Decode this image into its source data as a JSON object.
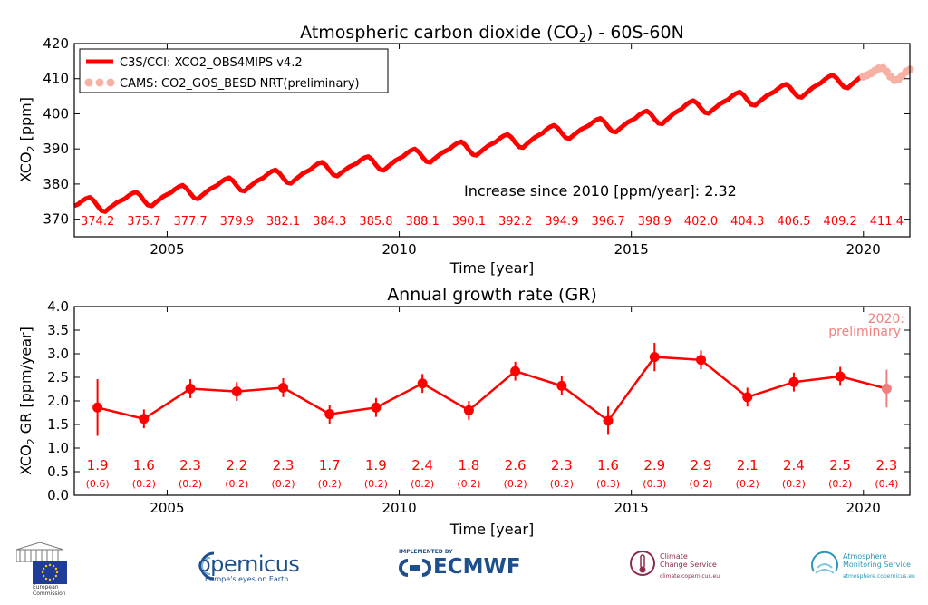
{
  "chart_data": [
    {
      "type": "line",
      "title_main": "Atmospheric carbon dioxide (CO",
      "title_sub": "2",
      "title_rest": ") - 60S-60N",
      "xlabel": "Time [year]",
      "ylabel_main": "XCO",
      "ylabel_sub": "2",
      "ylabel_rest": " [ppm]",
      "xlim": [
        2003.0,
        2021.0
      ],
      "ylim": [
        365,
        420
      ],
      "xticks": [
        2005,
        2010,
        2015,
        2020
      ],
      "yticks": [
        370,
        380,
        390,
        400,
        410,
        420
      ],
      "legend_position": "top-left",
      "series": [
        {
          "name": "C3S/CCI: XCO2_OBS4MIPS v4.2",
          "color": "#ff0000",
          "start_year": 2003.0,
          "end_year": 2020.0,
          "annual_means": [
            374.2,
            375.7,
            377.7,
            379.9,
            382.1,
            384.3,
            385.8,
            388.1,
            390.1,
            392.2,
            394.9,
            396.7,
            398.9,
            402.0,
            404.3,
            406.5,
            409.2
          ],
          "seasonal_amplitude": 2.2
        },
        {
          "name": "CAMS: CO2_GOS_BESD NRT(preliminary)",
          "color": "#f7b0a4",
          "points": [
            [
              2020.0,
              410.6
            ],
            [
              2020.08,
              411.0
            ],
            [
              2020.17,
              411.6
            ],
            [
              2020.25,
              412.3
            ],
            [
              2020.33,
              412.9
            ],
            [
              2020.42,
              413.0
            ],
            [
              2020.5,
              412.0
            ],
            [
              2020.58,
              410.6
            ],
            [
              2020.67,
              409.6
            ],
            [
              2020.75,
              409.8
            ],
            [
              2020.83,
              410.8
            ],
            [
              2020.92,
              412.0
            ],
            [
              2021.0,
              412.6
            ]
          ]
        }
      ],
      "annual_labels": [
        {
          "x": 2003.5,
          "label": "374.2"
        },
        {
          "x": 2004.5,
          "label": "375.7"
        },
        {
          "x": 2005.5,
          "label": "377.7"
        },
        {
          "x": 2006.5,
          "label": "379.9"
        },
        {
          "x": 2007.5,
          "label": "382.1"
        },
        {
          "x": 2008.5,
          "label": "384.3"
        },
        {
          "x": 2009.5,
          "label": "385.8"
        },
        {
          "x": 2010.5,
          "label": "388.1"
        },
        {
          "x": 2011.5,
          "label": "390.1"
        },
        {
          "x": 2012.5,
          "label": "392.2"
        },
        {
          "x": 2013.5,
          "label": "394.9"
        },
        {
          "x": 2014.5,
          "label": "396.7"
        },
        {
          "x": 2015.5,
          "label": "398.9"
        },
        {
          "x": 2016.5,
          "label": "402.0"
        },
        {
          "x": 2017.5,
          "label": "404.3"
        },
        {
          "x": 2018.5,
          "label": "406.5"
        },
        {
          "x": 2019.5,
          "label": "409.2"
        },
        {
          "x": 2020.5,
          "label": "411.4"
        }
      ],
      "annotation": "Increase since 2010 [ppm/year]: 2.32"
    },
    {
      "type": "line",
      "title": "Annual growth rate (GR)",
      "xlabel": "Time [year]",
      "ylabel_main": "XCO",
      "ylabel_sub": "2",
      "ylabel_rest": " GR [ppm/year]",
      "xlim": [
        2003.0,
        2021.0
      ],
      "ylim": [
        0.0,
        4.0
      ],
      "xticks": [
        2005,
        2010,
        2015,
        2020
      ],
      "yticks": [
        0.0,
        0.5,
        1.0,
        1.5,
        2.0,
        2.5,
        3.0,
        3.5,
        4.0
      ],
      "ytick_labels": [
        "0.0",
        "0.5",
        "1.0",
        "1.5",
        "2.0",
        "2.5",
        "3.0",
        "3.5",
        "4.0"
      ],
      "color": "#ff0000",
      "prelim_color": "#f08080",
      "points": [
        {
          "x": 2003.5,
          "value": 1.86,
          "err": 0.6,
          "label": "1.9",
          "err_label": "(0.6)"
        },
        {
          "x": 2004.5,
          "value": 1.62,
          "err": 0.2,
          "label": "1.6",
          "err_label": "(0.2)"
        },
        {
          "x": 2005.5,
          "value": 2.26,
          "err": 0.2,
          "label": "2.3",
          "err_label": "(0.2)"
        },
        {
          "x": 2006.5,
          "value": 2.2,
          "err": 0.2,
          "label": "2.2",
          "err_label": "(0.2)"
        },
        {
          "x": 2007.5,
          "value": 2.28,
          "err": 0.2,
          "label": "2.3",
          "err_label": "(0.2)"
        },
        {
          "x": 2008.5,
          "value": 1.72,
          "err": 0.2,
          "label": "1.7",
          "err_label": "(0.2)"
        },
        {
          "x": 2009.5,
          "value": 1.86,
          "err": 0.2,
          "label": "1.9",
          "err_label": "(0.2)"
        },
        {
          "x": 2010.5,
          "value": 2.37,
          "err": 0.2,
          "label": "2.4",
          "err_label": "(0.2)"
        },
        {
          "x": 2011.5,
          "value": 1.8,
          "err": 0.2,
          "label": "1.8",
          "err_label": "(0.2)"
        },
        {
          "x": 2012.5,
          "value": 2.63,
          "err": 0.2,
          "label": "2.6",
          "err_label": "(0.2)"
        },
        {
          "x": 2013.5,
          "value": 2.32,
          "err": 0.2,
          "label": "2.3",
          "err_label": "(0.2)"
        },
        {
          "x": 2014.5,
          "value": 1.58,
          "err": 0.3,
          "label": "1.6",
          "err_label": "(0.3)"
        },
        {
          "x": 2015.5,
          "value": 2.93,
          "err": 0.3,
          "label": "2.9",
          "err_label": "(0.3)"
        },
        {
          "x": 2016.5,
          "value": 2.87,
          "err": 0.2,
          "label": "2.9",
          "err_label": "(0.2)"
        },
        {
          "x": 2017.5,
          "value": 2.08,
          "err": 0.2,
          "label": "2.1",
          "err_label": "(0.2)"
        },
        {
          "x": 2018.5,
          "value": 2.4,
          "err": 0.2,
          "label": "2.4",
          "err_label": "(0.2)"
        },
        {
          "x": 2019.5,
          "value": 2.52,
          "err": 0.2,
          "label": "2.5",
          "err_label": "(0.2)"
        },
        {
          "x": 2020.5,
          "value": 2.26,
          "err": 0.4,
          "label": "2.3",
          "err_label": "(0.4)",
          "preliminary": true
        }
      ],
      "annotation_line1": "2020:",
      "annotation_line2": "preliminary"
    }
  ],
  "logos": {
    "ec": {
      "caption_line1": "European",
      "caption_line2": "Commission"
    },
    "copernicus": {
      "name": "opernicus",
      "tagline": "Europe's eyes on Earth"
    },
    "ecmwf": {
      "top": "IMPLEMENTED BY",
      "name": "ECMWF"
    },
    "c3s": {
      "line1": "Climate",
      "line2": "Change Service",
      "url": "climate.copernicus.eu"
    },
    "cams": {
      "line1": "Atmosphere",
      "line2": "Monitoring Service",
      "url": "atmosphere.copernicus.eu"
    }
  }
}
